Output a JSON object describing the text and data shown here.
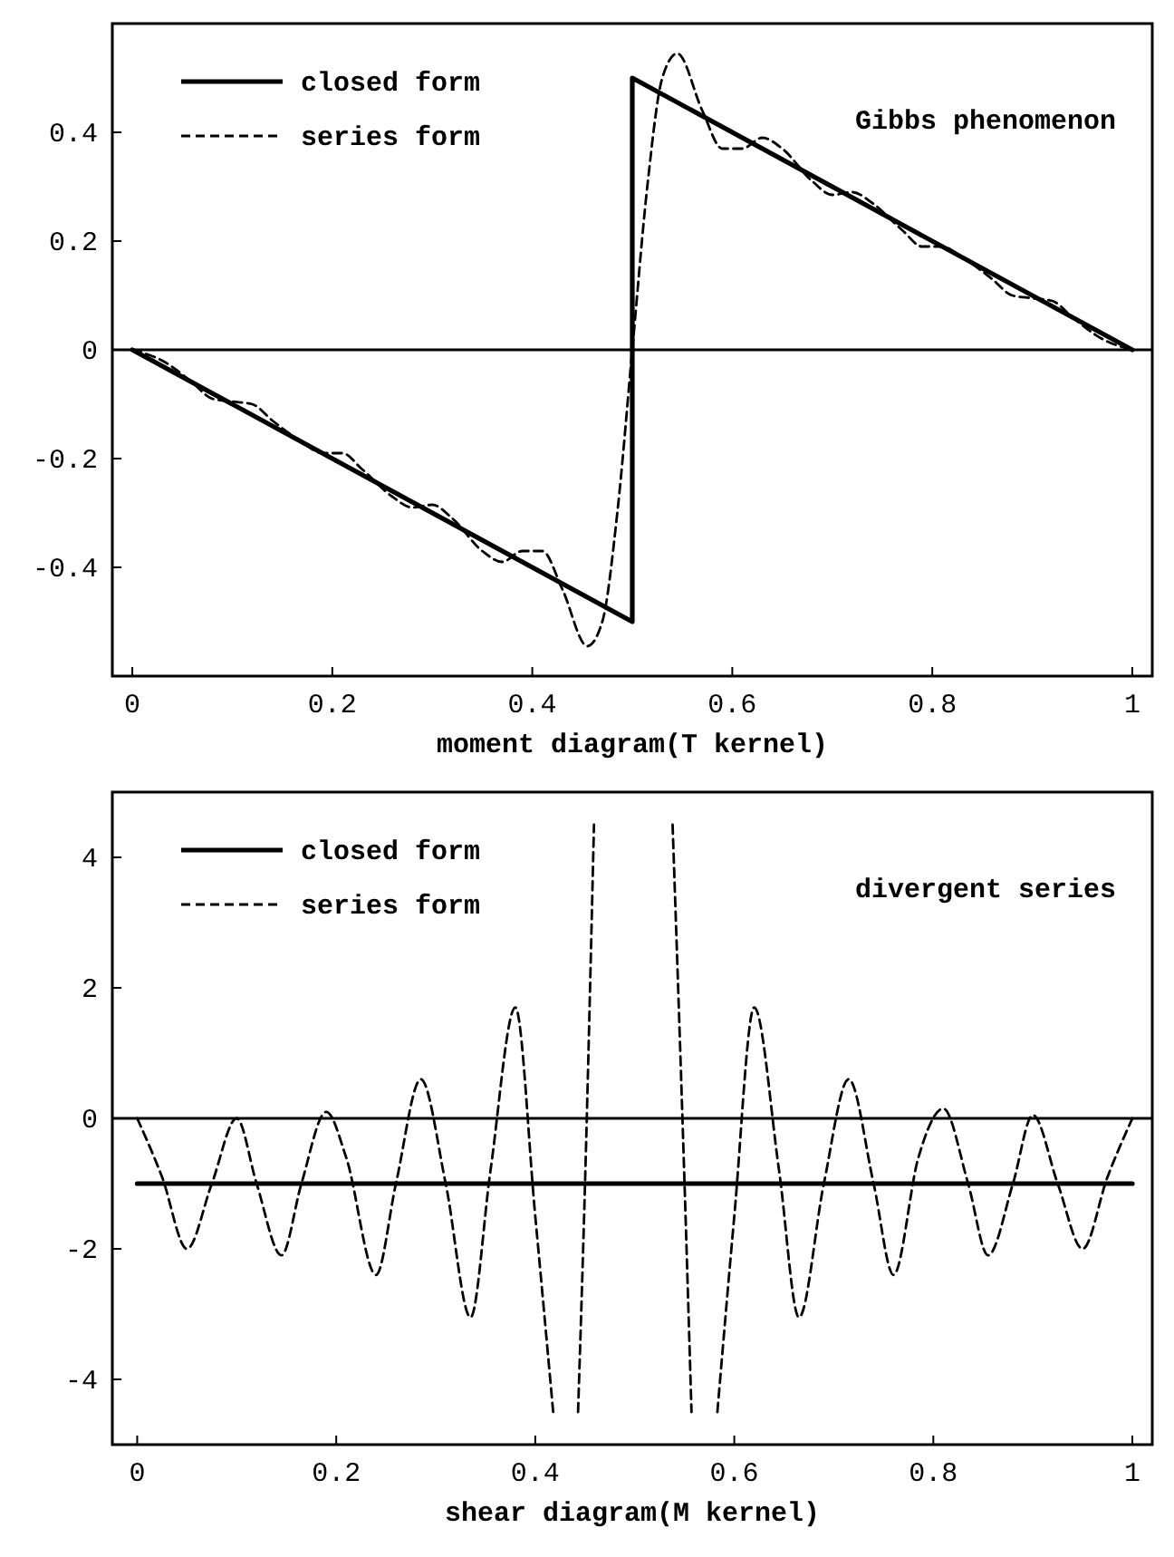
{
  "chart_data": [
    {
      "type": "line",
      "xlabel": "moment diagram(T kernel)",
      "annotations": [
        "Gibbs phenomenon"
      ],
      "xlim": [
        -0.02,
        1.02
      ],
      "ylim": [
        -0.6,
        0.6
      ],
      "xticks": [
        0,
        0.2,
        0.4,
        0.6,
        0.8,
        1
      ],
      "yticks": [
        {
          "value": -0.4,
          "label": "-0.4"
        },
        {
          "value": -0.2,
          "label": "-0.2"
        },
        0,
        {
          "value": 0.2,
          "label": "0.2"
        },
        {
          "value": 0.4,
          "label": "0.4"
        }
      ],
      "grid": false,
      "legend": "top left",
      "ref_lines": [
        {
          "axis": "y",
          "value": 0,
          "color": "#000000",
          "line_style": "solid"
        }
      ],
      "series": [
        {
          "name": "closed form",
          "color": "#000000",
          "line_style": "solid",
          "x": [
            0,
            0.5,
            0.5,
            1
          ],
          "values": [
            0,
            -0.5,
            0.5,
            0
          ]
        },
        {
          "name": "series form",
          "color": "#000000",
          "line_style": "dashed",
          "x": [
            0,
            0.03,
            0.06,
            0.08,
            0.1,
            0.12,
            0.14,
            0.17,
            0.19,
            0.21,
            0.23,
            0.26,
            0.28,
            0.3,
            0.32,
            0.35,
            0.37,
            0.39,
            0.41,
            0.43,
            0.455,
            0.47,
            0.485,
            0.5,
            0.515,
            0.53,
            0.545,
            0.57,
            0.59,
            0.61,
            0.63,
            0.65,
            0.68,
            0.7,
            0.72,
            0.74,
            0.77,
            0.79,
            0.81,
            0.83,
            0.86,
            0.88,
            0.9,
            0.92,
            0.94,
            0.97,
            1
          ],
          "values": [
            0,
            -0.02,
            -0.06,
            -0.09,
            -0.095,
            -0.1,
            -0.13,
            -0.17,
            -0.19,
            -0.19,
            -0.22,
            -0.27,
            -0.29,
            -0.285,
            -0.31,
            -0.37,
            -0.39,
            -0.37,
            -0.37,
            -0.44,
            -0.545,
            -0.5,
            -0.3,
            0,
            0.3,
            0.5,
            0.545,
            0.44,
            0.37,
            0.37,
            0.39,
            0.37,
            0.31,
            0.285,
            0.29,
            0.27,
            0.22,
            0.19,
            0.19,
            0.17,
            0.13,
            0.1,
            0.095,
            0.09,
            0.06,
            0.02,
            0
          ]
        }
      ]
    },
    {
      "type": "line",
      "xlabel": "shear diagram(M kernel)",
      "annotations": [
        "divergent series"
      ],
      "xlim": [
        -0.025,
        1.02
      ],
      "ylim": [
        -5,
        5
      ],
      "xticks": [
        0,
        0.2,
        0.4,
        0.6,
        0.8,
        1
      ],
      "yticks": [
        -4,
        -2,
        0,
        2,
        4
      ],
      "grid": false,
      "legend": "top left",
      "ref_lines": [
        {
          "axis": "y",
          "value": 0,
          "color": "#000000",
          "line_style": "solid"
        }
      ],
      "series": [
        {
          "name": "closed form",
          "color": "#000000",
          "line_style": "solid",
          "x": [
            0,
            1
          ],
          "values": [
            -1,
            -1
          ]
        },
        {
          "name": "series form",
          "color": "#000000",
          "line_style": "dashed",
          "x": [
            0,
            0.025,
            0.05,
            0.075,
            0.1,
            0.12,
            0.145,
            0.165,
            0.19,
            0.21,
            0.24,
            0.26,
            0.285,
            0.31,
            0.335,
            0.355,
            0.38,
            0.4,
            0.418,
            0.43,
            0.443,
            0.45,
            0.459,
            0.5,
            0.538,
            0.55,
            0.557,
            0.57,
            0.583,
            0.6,
            0.62,
            0.645,
            0.665,
            0.69,
            0.715,
            0.74,
            0.76,
            0.785,
            0.81,
            0.835,
            0.855,
            0.88,
            0.9,
            0.925,
            0.95,
            0.975,
            1
          ],
          "values": [
            0,
            -0.9,
            -2,
            -1,
            0,
            -1,
            -2.1,
            -1,
            0.1,
            -0.6,
            -2.4,
            -1,
            0.6,
            -1,
            -3.05,
            -0.8,
            1.7,
            -1.5,
            -4.5,
            null,
            -4.5,
            -1,
            4.5,
            null,
            4.5,
            -1,
            -4.5,
            null,
            -4.5,
            -1.5,
            1.7,
            -0.8,
            -3.05,
            -1,
            0.6,
            -1,
            -2.4,
            -0.6,
            0.15,
            -1,
            -2.1,
            -1,
            0.05,
            -1,
            -2,
            -0.9,
            0
          ]
        }
      ]
    }
  ]
}
